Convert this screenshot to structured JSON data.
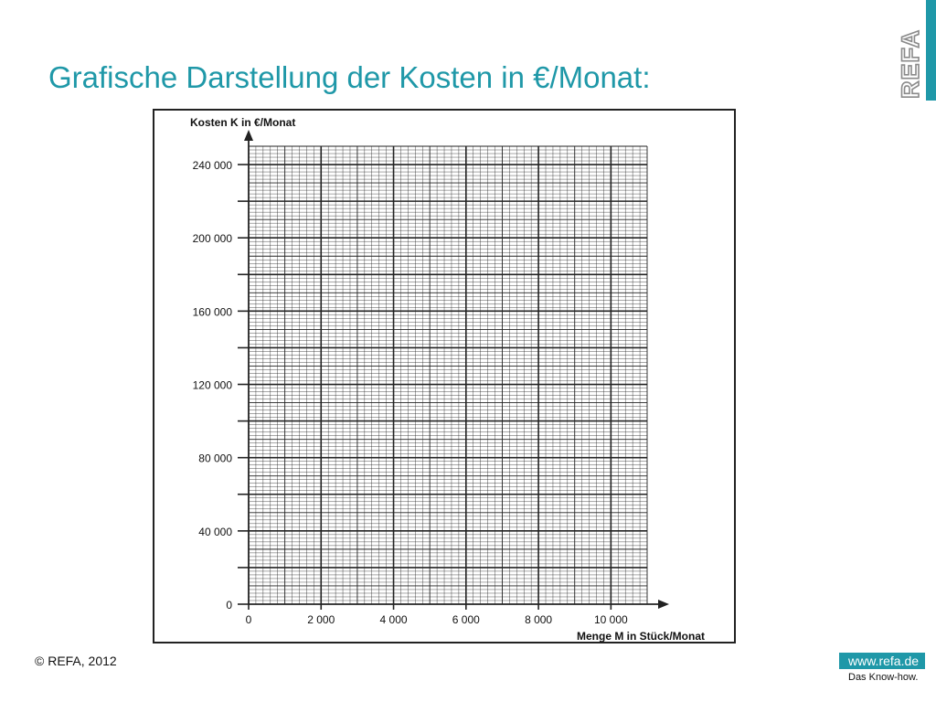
{
  "slide": {
    "title": "Grafische Darstellung der Kosten in €/Monat:"
  },
  "logo": {
    "text": "REFA"
  },
  "footer": {
    "copyright": "© REFA, 2012",
    "url": "www.refa.de",
    "tagline": "Das Know-how."
  },
  "colors": {
    "accent": "#1f98a8",
    "grid": "#222222"
  },
  "chart_data": {
    "type": "line",
    "title": "",
    "xlabel": "Menge M in Stück/Monat",
    "ylabel": "Kosten K in €/Monat",
    "xlim": [
      0,
      11000
    ],
    "ylim": [
      0,
      250000
    ],
    "x_ticks": [
      0,
      2000,
      4000,
      6000,
      8000,
      10000
    ],
    "x_tick_labels": [
      "0",
      "2 000",
      "4 000",
      "6 000",
      "8 000",
      "10 000"
    ],
    "y_ticks": [
      0,
      40000,
      80000,
      120000,
      160000,
      200000,
      240000
    ],
    "y_tick_labels": [
      "0",
      "40 000",
      "80 000",
      "120 000",
      "160 000",
      "200 000",
      "240 000"
    ],
    "grid": true,
    "grid_minor": true,
    "series": []
  }
}
